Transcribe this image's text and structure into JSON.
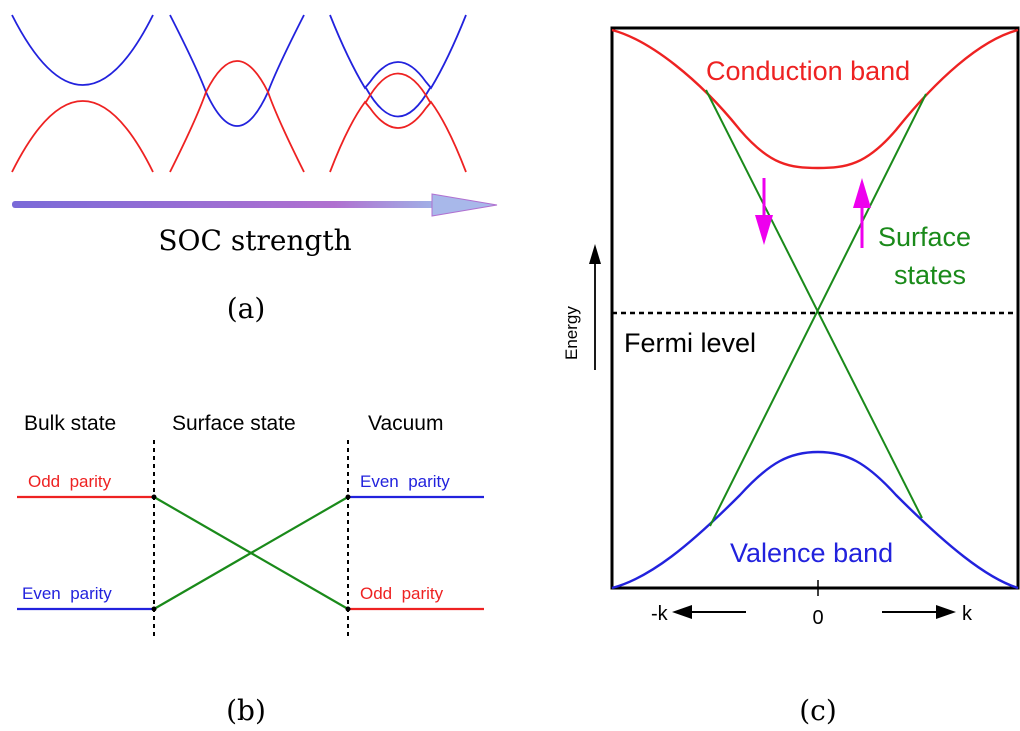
{
  "panel_a": {
    "arrow_label": "SOC strength",
    "caption": "(a)"
  },
  "panel_b": {
    "headers": {
      "bulk": "Bulk state",
      "surface": "Surface state",
      "vacuum": "Vacuum"
    },
    "left_top": "Odd  parity",
    "left_bottom": "Even  parity",
    "right_top": "Even  parity",
    "right_bottom": "Odd  parity",
    "caption": "(b)"
  },
  "panel_c": {
    "conduction": "Conduction band",
    "valence": "Valence band",
    "surface_line1": "Surface",
    "surface_line2": "states",
    "fermi": "Fermi level",
    "energy": "Energy",
    "k_neg": "-k",
    "k_zero": "0",
    "k_pos": "k",
    "caption": "(c)"
  },
  "colors": {
    "blue": "#2222dd",
    "red": "#ee2222",
    "green": "#1a8a1a",
    "magenta": "#ee00ee",
    "black": "#000000"
  }
}
